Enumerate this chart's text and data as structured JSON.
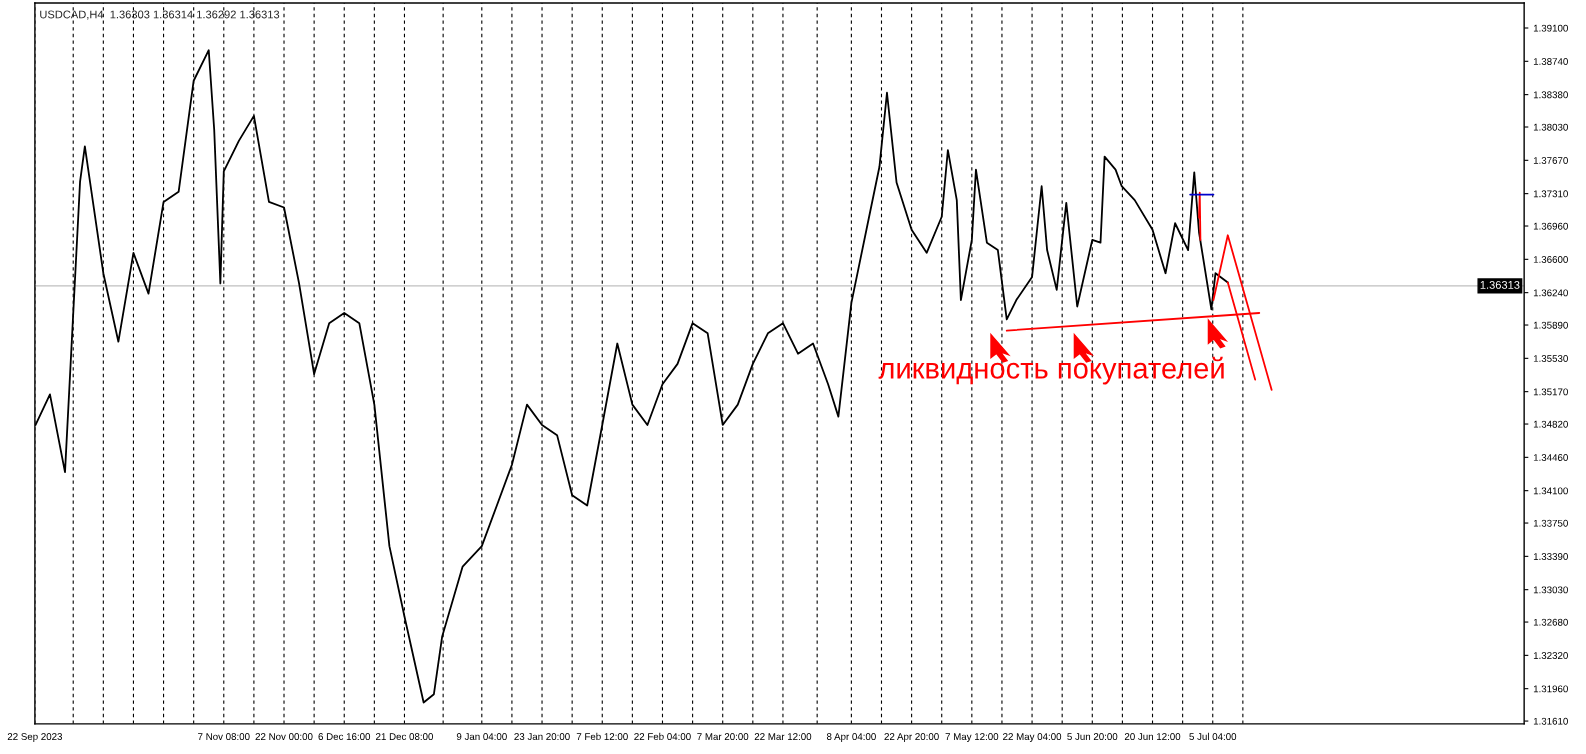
{
  "chart_data": {
    "type": "line",
    "title": "USDCAD,H4  1.36303 1.36314 1.36292 1.36313",
    "annotations": [
      "ликвидность покупателей"
    ],
    "series": [
      {
        "color": "#000000",
        "x": [
          "2023-09-22T12:00",
          "2023-09-26T00:00",
          "2023-09-29T16:00",
          "2023-10-03T08:00",
          "2023-10-04T12:00",
          "2023-10-09T00:00",
          "2023-10-12T16:00",
          "2023-10-16T08:00",
          "2023-10-20T00:00",
          "2023-10-23T16:00",
          "2023-10-27T08:00",
          "2023-10-31T00:00",
          "2023-11-03T16:00",
          "2023-11-05T00:00",
          "2023-11-06T12:00",
          "2023-11-07T08:00",
          "2023-11-11T00:00",
          "2023-11-14T16:00",
          "2023-11-18T08:00",
          "2023-11-22T00:00",
          "2023-11-25T16:00",
          "2023-11-29T08:00",
          "2023-12-03T00:00",
          "2023-12-06T16:00",
          "2023-12-10T08:00",
          "2023-12-14T00:00",
          "2023-12-17T16:00",
          "2023-12-21T08:00",
          "2023-12-26T00:00",
          "2023-12-28T12:00",
          "2023-12-30T12:00",
          "2024-01-04T12:00",
          "2024-01-09T04:00",
          "2024-01-12T20:00",
          "2024-01-16T12:00",
          "2024-01-20T04:00",
          "2024-01-23T20:00",
          "2024-01-27T12:00",
          "2024-01-31T04:00",
          "2024-02-03T20:00",
          "2024-02-07T12:00",
          "2024-02-11T04:00",
          "2024-02-14T20:00",
          "2024-02-18T12:00",
          "2024-02-22T04:00",
          "2024-02-25T20:00",
          "2024-02-29T12:00",
          "2024-03-04T04:00",
          "2024-03-07T20:00",
          "2024-03-11T12:00",
          "2024-03-15T04:00",
          "2024-03-18T20:00",
          "2024-03-22T12:00",
          "2024-03-26T04:00",
          "2024-03-29T20:00",
          "2024-04-02T12:00",
          "2024-04-05T00:00",
          "2024-04-08T04:00",
          "2024-04-11T20:00",
          "2024-04-15T00:00",
          "2024-04-16T20:00",
          "2024-04-19T04:00",
          "2024-04-22T20:00",
          "2024-04-26T12:00",
          "2024-04-30T04:00",
          "2024-05-01T16:00",
          "2024-05-03T20:00",
          "2024-05-04T20:00",
          "2024-05-07T12:00",
          "2024-05-08T12:00",
          "2024-05-11T04:00",
          "2024-05-13T20:00",
          "2024-05-16T00:00",
          "2024-05-18T08:00",
          "2024-05-22T04:00",
          "2024-05-24T12:00",
          "2024-05-25T20:00",
          "2024-05-28T04:00",
          "2024-05-30T12:00",
          "2024-06-02T04:00",
          "2024-06-05T20:00",
          "2024-06-07T20:00",
          "2024-06-08T20:00",
          "2024-06-11T12:00",
          "2024-06-13T00:00",
          "2024-06-16T04:00",
          "2024-06-20T12:00",
          "2024-06-23T16:00",
          "2024-06-26T00:00",
          "2024-06-29T04:00",
          "2024-06-30T16:00",
          "2024-07-01T20:00",
          "2024-07-04T20:00",
          "2024-07-05T20:00",
          "2024-07-08T20:00"
        ],
        "values": [
          1.3481,
          1.3514,
          1.343,
          1.3744,
          1.3782,
          1.3645,
          1.3571,
          1.3667,
          1.3623,
          1.3722,
          1.3733,
          1.3853,
          1.3886,
          1.38,
          1.3634,
          1.3755,
          1.3788,
          1.3815,
          1.3722,
          1.3716,
          1.3634,
          1.3536,
          1.3591,
          1.3602,
          1.3591,
          1.3503,
          1.335,
          1.3274,
          1.3181,
          1.319,
          1.3252,
          1.3328,
          1.335,
          1.3394,
          1.3438,
          1.3503,
          1.3481,
          1.347,
          1.3405,
          1.3394,
          1.3481,
          1.3569,
          1.3503,
          1.3481,
          1.3525,
          1.3547,
          1.3591,
          1.358,
          1.3481,
          1.3503,
          1.3547,
          1.358,
          1.3591,
          1.3558,
          1.3569,
          1.3525,
          1.349,
          1.3613,
          1.3692,
          1.376,
          1.384,
          1.3743,
          1.3692,
          1.3667,
          1.3706,
          1.3778,
          1.3724,
          1.3616,
          1.3681,
          1.3757,
          1.3678,
          1.367,
          1.3595,
          1.3616,
          1.3641,
          1.3739,
          1.367,
          1.3627,
          1.3721,
          1.3609,
          1.3681,
          1.3678,
          1.3771,
          1.3757,
          1.3739,
          1.3724,
          1.3692,
          1.3645,
          1.3699,
          1.367,
          1.3754,
          1.3689,
          1.3606,
          1.3645,
          1.3635
        ]
      },
      {
        "color": "#ff0000",
        "x": [
          "2024-05-16T00:00",
          "2024-07-16T12:00"
        ],
        "values": [
          1.3583,
          1.3602
        ]
      },
      {
        "color": "#ff0000",
        "x": [
          "2024-07-08T20:00",
          "2024-07-15T12:00"
        ],
        "values": [
          1.3635,
          1.353
        ]
      },
      {
        "color": "#ff0000",
        "x": [
          "2024-07-05T08:00",
          "2024-07-08T20:00",
          "2024-07-19T12:00"
        ],
        "values": [
          1.3616,
          1.3686,
          1.3519
        ]
      },
      {
        "color": "#ff0000",
        "x": [
          "2024-07-01T20:00",
          "2024-07-02T00:00",
          "2024-07-02T04:00"
        ],
        "values": [
          1.3705,
          1.3732,
          1.3681
        ]
      },
      {
        "color": "#0000cc",
        "x": [
          "2024-06-29T16:00",
          "2024-07-05T08:00"
        ],
        "values": [
          1.373,
          1.373
        ]
      }
    ],
    "xlim": [
      "2023-09-22T08:00",
      "2024-09-19T00:00"
    ],
    "xticks": [
      {
        "value": "2023-09-22T08:00",
        "label": "22 Sep 2023"
      },
      {
        "value": "2023-10-01T16:00",
        "label": null
      },
      {
        "value": "2023-10-09T00:00",
        "label": null
      },
      {
        "value": "2023-10-16T08:00",
        "label": null
      },
      {
        "value": "2023-10-23T16:00",
        "label": null
      },
      {
        "value": "2023-10-31T00:00",
        "label": null
      },
      {
        "value": "2023-11-07T08:00",
        "label": "7 Nov 08:00"
      },
      {
        "value": "2023-11-14T16:00",
        "label": null
      },
      {
        "value": "2023-11-22T00:00",
        "label": "22 Nov 00:00"
      },
      {
        "value": "2023-11-29T08:00",
        "label": null
      },
      {
        "value": "2023-12-06T16:00",
        "label": "6 Dec 16:00"
      },
      {
        "value": "2023-12-14T00:00",
        "label": null
      },
      {
        "value": "2023-12-21T08:00",
        "label": "21 Dec 08:00"
      },
      {
        "value": "2023-12-30T18:00",
        "label": null
      },
      {
        "value": "2024-01-09T04:00",
        "label": "9 Jan 04:00"
      },
      {
        "value": "2024-01-16T12:00",
        "label": null
      },
      {
        "value": "2024-01-23T20:00",
        "label": "23 Jan 20:00"
      },
      {
        "value": "2024-01-31T04:00",
        "label": null
      },
      {
        "value": "2024-02-07T12:00",
        "label": "7 Feb 12:00"
      },
      {
        "value": "2024-02-14T20:00",
        "label": null
      },
      {
        "value": "2024-02-22T04:00",
        "label": "22 Feb 04:00"
      },
      {
        "value": "2024-02-29T12:00",
        "label": null
      },
      {
        "value": "2024-03-07T20:00",
        "label": "7 Mar 20:00"
      },
      {
        "value": "2024-03-15T04:00",
        "label": null
      },
      {
        "value": "2024-03-22T12:00",
        "label": "22 Mar 12:00"
      },
      {
        "value": "2024-03-30T20:00",
        "label": null
      },
      {
        "value": "2024-04-08T04:00",
        "label": "8 Apr 04:00"
      },
      {
        "value": "2024-04-15T12:00",
        "label": null
      },
      {
        "value": "2024-04-22T20:00",
        "label": "22 Apr 20:00"
      },
      {
        "value": "2024-04-30T04:00",
        "label": null
      },
      {
        "value": "2024-05-07T12:00",
        "label": "7 May 12:00"
      },
      {
        "value": "2024-05-14T20:00",
        "label": null
      },
      {
        "value": "2024-05-22T04:00",
        "label": "22 May 04:00"
      },
      {
        "value": "2024-05-29T12:00",
        "label": null
      },
      {
        "value": "2024-06-05T20:00",
        "label": "5 Jun 20:00"
      },
      {
        "value": "2024-06-13T04:00",
        "label": null
      },
      {
        "value": "2024-06-20T12:00",
        "label": "20 Jun 12:00"
      },
      {
        "value": "2024-06-27T20:00",
        "label": null
      },
      {
        "value": "2024-07-05T04:00",
        "label": "5 Jul 04:00"
      },
      {
        "value": "2024-07-12T12:00",
        "label": null
      }
    ],
    "ylim": [
      1.3158,
      1.3937
    ],
    "yticks": [
      {
        "value": 1.391,
        "label": "1.39100"
      },
      {
        "value": 1.3874,
        "label": "1.38740"
      },
      {
        "value": 1.3838,
        "label": "1.38380"
      },
      {
        "value": 1.3803,
        "label": "1.38030"
      },
      {
        "value": 1.3767,
        "label": "1.37670"
      },
      {
        "value": 1.3731,
        "label": "1.37310"
      },
      {
        "value": 1.3696,
        "label": "1.36960"
      },
      {
        "value": 1.366,
        "label": "1.36600"
      },
      {
        "value": 1.3624,
        "label": "1.36240"
      },
      {
        "value": 1.3589,
        "label": "1.35890"
      },
      {
        "value": 1.3553,
        "label": "1.35530"
      },
      {
        "value": 1.3517,
        "label": "1.35170"
      },
      {
        "value": 1.3482,
        "label": "1.34820"
      },
      {
        "value": 1.3446,
        "label": "1.34460"
      },
      {
        "value": 1.341,
        "label": "1.34100"
      },
      {
        "value": 1.3375,
        "label": "1.33750"
      },
      {
        "value": 1.3339,
        "label": "1.33390"
      },
      {
        "value": 1.3303,
        "label": "1.33030"
      },
      {
        "value": 1.3268,
        "label": "1.32680"
      },
      {
        "value": 1.3232,
        "label": "1.32320"
      },
      {
        "value": 1.3196,
        "label": "1.31960"
      },
      {
        "value": 1.3161,
        "label": "1.31610"
      }
    ],
    "ref_lines": [
      {
        "axis": "y",
        "value": 1.36313,
        "label": "1.36313",
        "color": "#c0c0c0"
      }
    ],
    "grid": "x",
    "legend": false
  }
}
